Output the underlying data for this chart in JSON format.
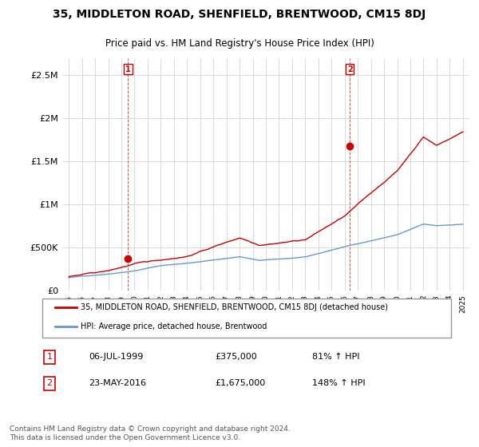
{
  "title": "35, MIDDLETON ROAD, SHENFIELD, BRENTWOOD, CM15 8DJ",
  "subtitle": "Price paid vs. HM Land Registry's House Price Index (HPI)",
  "ylabel_ticks": [
    "£0",
    "£500K",
    "£1M",
    "£1.5M",
    "£2M",
    "£2.5M"
  ],
  "ytick_values": [
    0,
    500000,
    1000000,
    1500000,
    2000000,
    2500000
  ],
  "ylim": [
    0,
    2700000
  ],
  "legend_line1": "35, MIDDLETON ROAD, SHENFIELD, BRENTWOOD, CM15 8DJ (detached house)",
  "legend_line2": "HPI: Average price, detached house, Brentwood",
  "annotation1_label": "1",
  "annotation1_date": "06-JUL-1999",
  "annotation1_price": "£375,000",
  "annotation1_hpi": "81% ↑ HPI",
  "annotation2_label": "2",
  "annotation2_date": "23-MAY-2016",
  "annotation2_price": "£1,675,000",
  "annotation2_hpi": "148% ↑ HPI",
  "footer": "Contains HM Land Registry data © Crown copyright and database right 2024.\nThis data is licensed under the Open Government Licence v3.0.",
  "red_color": "#cc0000",
  "blue_color": "#6699cc",
  "grid_color": "#cccccc",
  "background_color": "#ffffff",
  "sale1_year": 1999.51,
  "sale1_price": 375000,
  "sale2_year": 2016.39,
  "sale2_price": 1675000
}
